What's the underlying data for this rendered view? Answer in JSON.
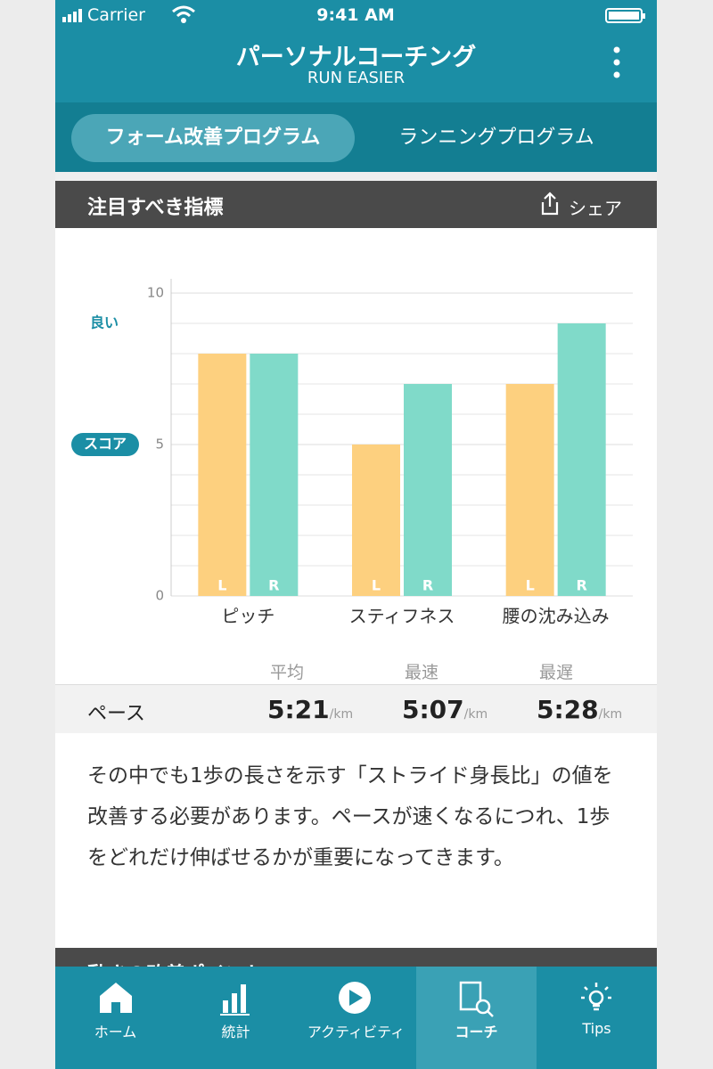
{
  "status_bar": {
    "carrier": "Carrier",
    "time": "9:41 AM"
  },
  "header": {
    "title": "パーソナルコーチング",
    "subtitle": "RUN EASIER"
  },
  "tabs": [
    "フォーム改善プログラム",
    "ランニングプログラム"
  ],
  "section": {
    "title": "注目すべき指標",
    "share": "シェア"
  },
  "chart_data": {
    "type": "bar",
    "categories": [
      "ピッチ",
      "スティフネス",
      "腰の沈み込み"
    ],
    "series": [
      {
        "name": "L",
        "color": "#fdd07f",
        "values": [
          8,
          5,
          7
        ]
      },
      {
        "name": "R",
        "color": "#80dac9",
        "values": [
          8,
          7,
          9
        ]
      }
    ],
    "ylim": [
      0,
      10
    ],
    "yticks": [
      0,
      5,
      10
    ],
    "minor_yticks": [
      1,
      2,
      3,
      4,
      6,
      7,
      8,
      9
    ],
    "grid": true,
    "annotations": [
      {
        "text": "良い",
        "y": 9
      },
      {
        "text": "スコア",
        "y": 5
      }
    ]
  },
  "pace": {
    "label": "ペース",
    "columns": [
      "平均",
      "最速",
      "最遅"
    ],
    "values": [
      "5:21",
      "5:07",
      "5:28"
    ],
    "unit": "/km"
  },
  "description": "その中でも1歩の長さを示す「ストライド身長比」の値を改善する必要があります。ペースが速くなるにつれ、1歩をどれだけ伸ばせるかが重要になってきます。",
  "next_section": {
    "title": "動きの改善ポイント"
  },
  "tab_bar": [
    "ホーム",
    "統計",
    "アクティビティ",
    "コーチ",
    "Tips"
  ]
}
